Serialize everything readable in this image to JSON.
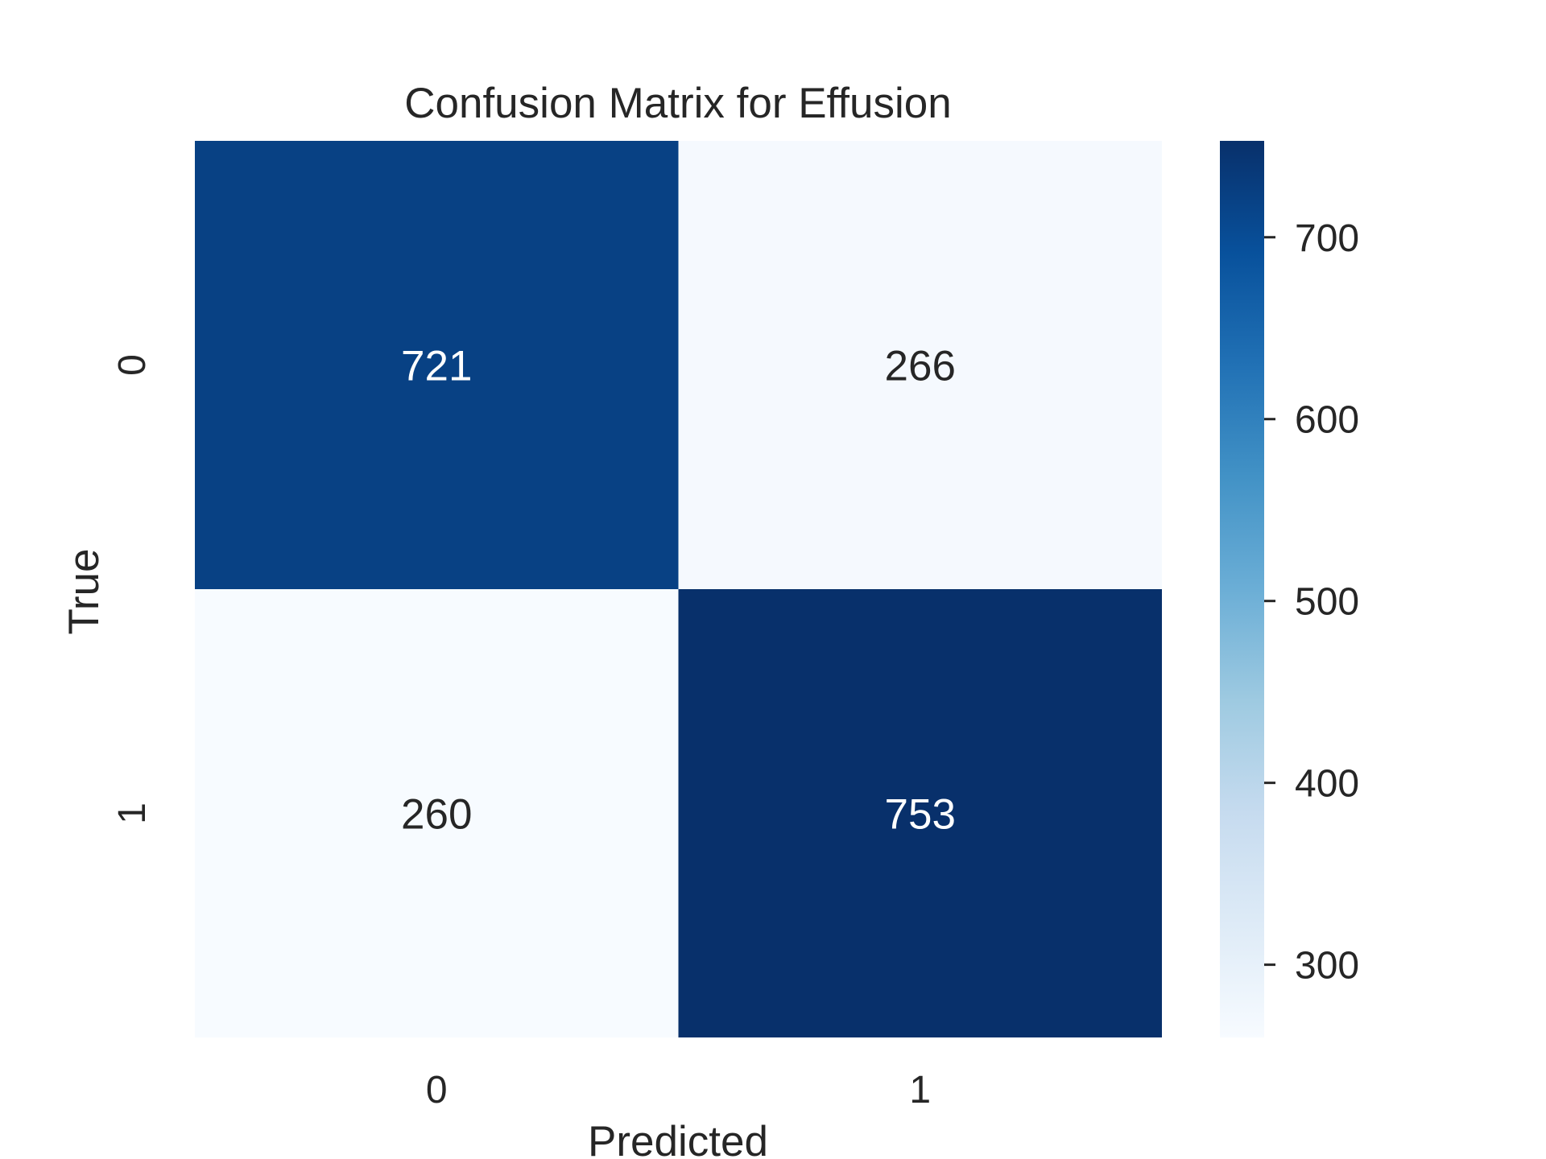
{
  "chart_data": {
    "type": "heatmap",
    "title": "Confusion Matrix for Effusion",
    "xlabel": "Predicted",
    "ylabel": "True",
    "x_categories": [
      "0",
      "1"
    ],
    "y_categories": [
      "0",
      "1"
    ],
    "values": [
      [
        721,
        266
      ],
      [
        260,
        753
      ]
    ],
    "colorbar": {
      "min": 260,
      "max": 753,
      "ticks": [
        300,
        400,
        500,
        600,
        700
      ],
      "colormap": "Blues",
      "colors": [
        "#f7fbff",
        "#deebf7",
        "#c6dbef",
        "#9ecae1",
        "#6baed6",
        "#4292c6",
        "#2171b5",
        "#08519c",
        "#08306b"
      ]
    },
    "annotation_colors": {
      "dark": "#262626",
      "light": "#ffffff"
    }
  }
}
